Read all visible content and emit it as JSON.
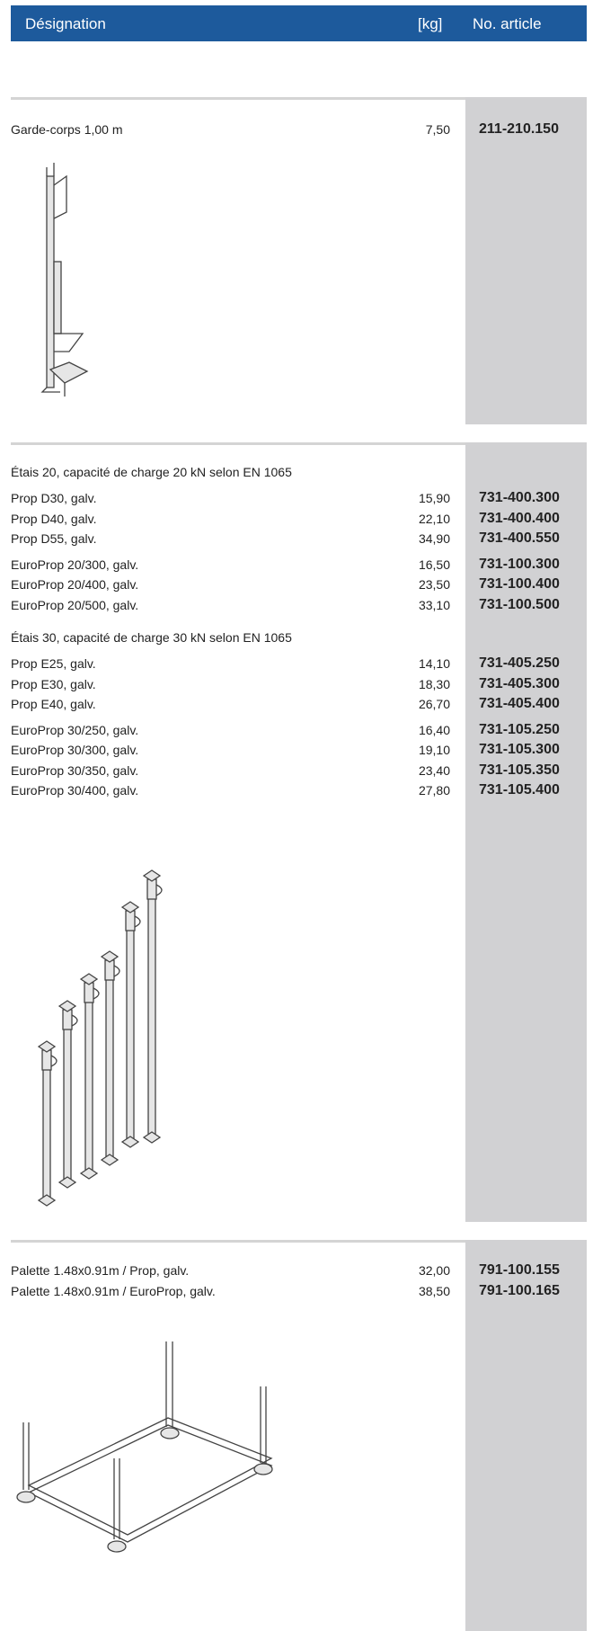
{
  "header": {
    "designation": "Désignation",
    "weight": "[kg]",
    "article": "No. article"
  },
  "sections": [
    {
      "groups": [
        {
          "rows": [
            {
              "name": "Garde-corps 1,00 m",
              "kg": "7,50",
              "article": "211-210.150"
            }
          ]
        }
      ]
    },
    {
      "groups": [
        {
          "heading": "Étais 20, capacité de charge 20 kN selon EN 1065",
          "rows": [
            {
              "name": "Prop D30, galv.",
              "kg": "15,90",
              "article": "731-400.300"
            },
            {
              "name": "Prop D40, galv.",
              "kg": "22,10",
              "article": "731-400.400"
            },
            {
              "name": "Prop D55, galv.",
              "kg": "34,90",
              "article": "731-400.550"
            }
          ]
        },
        {
          "rows": [
            {
              "name": "EuroProp 20/300, galv.",
              "kg": "16,50",
              "article": "731-100.300"
            },
            {
              "name": "EuroProp 20/400, galv.",
              "kg": "23,50",
              "article": "731-100.400"
            },
            {
              "name": "EuroProp 20/500, galv.",
              "kg": "33,10",
              "article": "731-100.500"
            }
          ]
        },
        {
          "heading": "Étais 30, capacité de charge 30 kN selon EN 1065",
          "rows": [
            {
              "name": "Prop E25, galv.",
              "kg": "14,10",
              "article": "731-405.250"
            },
            {
              "name": "Prop E30, galv.",
              "kg": "18,30",
              "article": "731-405.300"
            },
            {
              "name": "Prop E40, galv.",
              "kg": "26,70",
              "article": "731-405.400"
            }
          ]
        },
        {
          "rows": [
            {
              "name": "EuroProp 30/250, galv.",
              "kg": "16,40",
              "article": "731-105.250"
            },
            {
              "name": "EuroProp 30/300, galv.",
              "kg": "19,10",
              "article": "731-105.300"
            },
            {
              "name": "EuroProp 30/350, galv.",
              "kg": "23,40",
              "article": "731-105.350"
            },
            {
              "name": "EuroProp 30/400, galv.",
              "kg": "27,80",
              "article": "731-105.400"
            }
          ]
        }
      ]
    },
    {
      "groups": [
        {
          "rows": [
            {
              "name": "Palette 1.48x0.91m / Prop, galv.",
              "kg": "32,00",
              "article": "791-100.155"
            },
            {
              "name": "Palette 1.48x0.91m / EuroProp, galv.",
              "kg": "38,50",
              "article": "791-100.165"
            }
          ]
        }
      ]
    }
  ]
}
